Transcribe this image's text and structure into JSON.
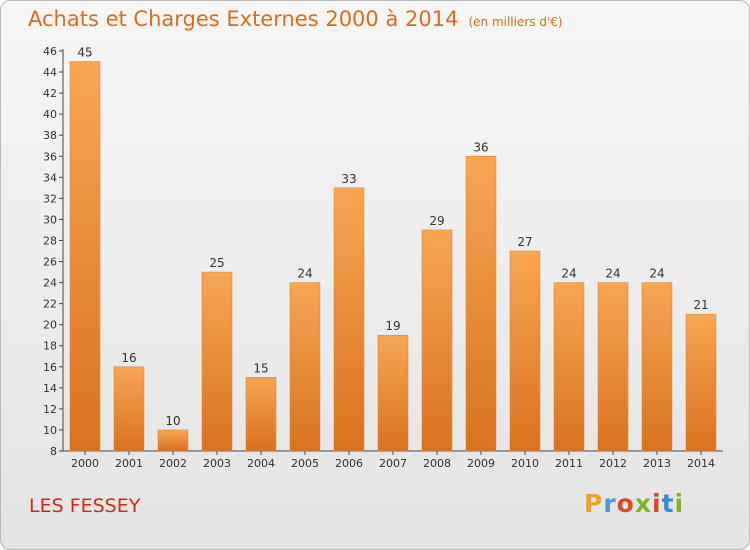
{
  "header": {
    "title": "Achats et Charges Externes 2000 à 2014",
    "unit": "(en milliers d'€)"
  },
  "footer": {
    "place": "LES FESSEY",
    "logo_letters": [
      "P",
      "r",
      "o",
      "x",
      "i",
      "t",
      "i"
    ],
    "logo_colors": [
      "#f0a21a",
      "#4a9ad8",
      "#e2471d",
      "#7cb51f",
      "#e2471d",
      "#2f8ed8",
      "#7cb51f"
    ]
  },
  "chart_data": {
    "type": "bar",
    "categories": [
      "2000",
      "2001",
      "2002",
      "2003",
      "2004",
      "2005",
      "2006",
      "2007",
      "2008",
      "2009",
      "2010",
      "2011",
      "2012",
      "2013",
      "2014"
    ],
    "series": [
      {
        "values": [
          45,
          16,
          10,
          25,
          15,
          24,
          33,
          19,
          29,
          36,
          27,
          24,
          24,
          24,
          21
        ]
      }
    ],
    "ylim": [
      8,
      46
    ],
    "yticks": [
      8,
      10,
      12,
      14,
      16,
      18,
      20,
      22,
      24,
      26,
      28,
      30,
      32,
      34,
      36,
      38,
      40,
      42,
      44,
      46
    ],
    "data_labels": true,
    "grid": false,
    "colors": {
      "bar_light": "#f7a653",
      "bar_dark": "#d8721e",
      "bar_edge": "#e07f28"
    }
  }
}
